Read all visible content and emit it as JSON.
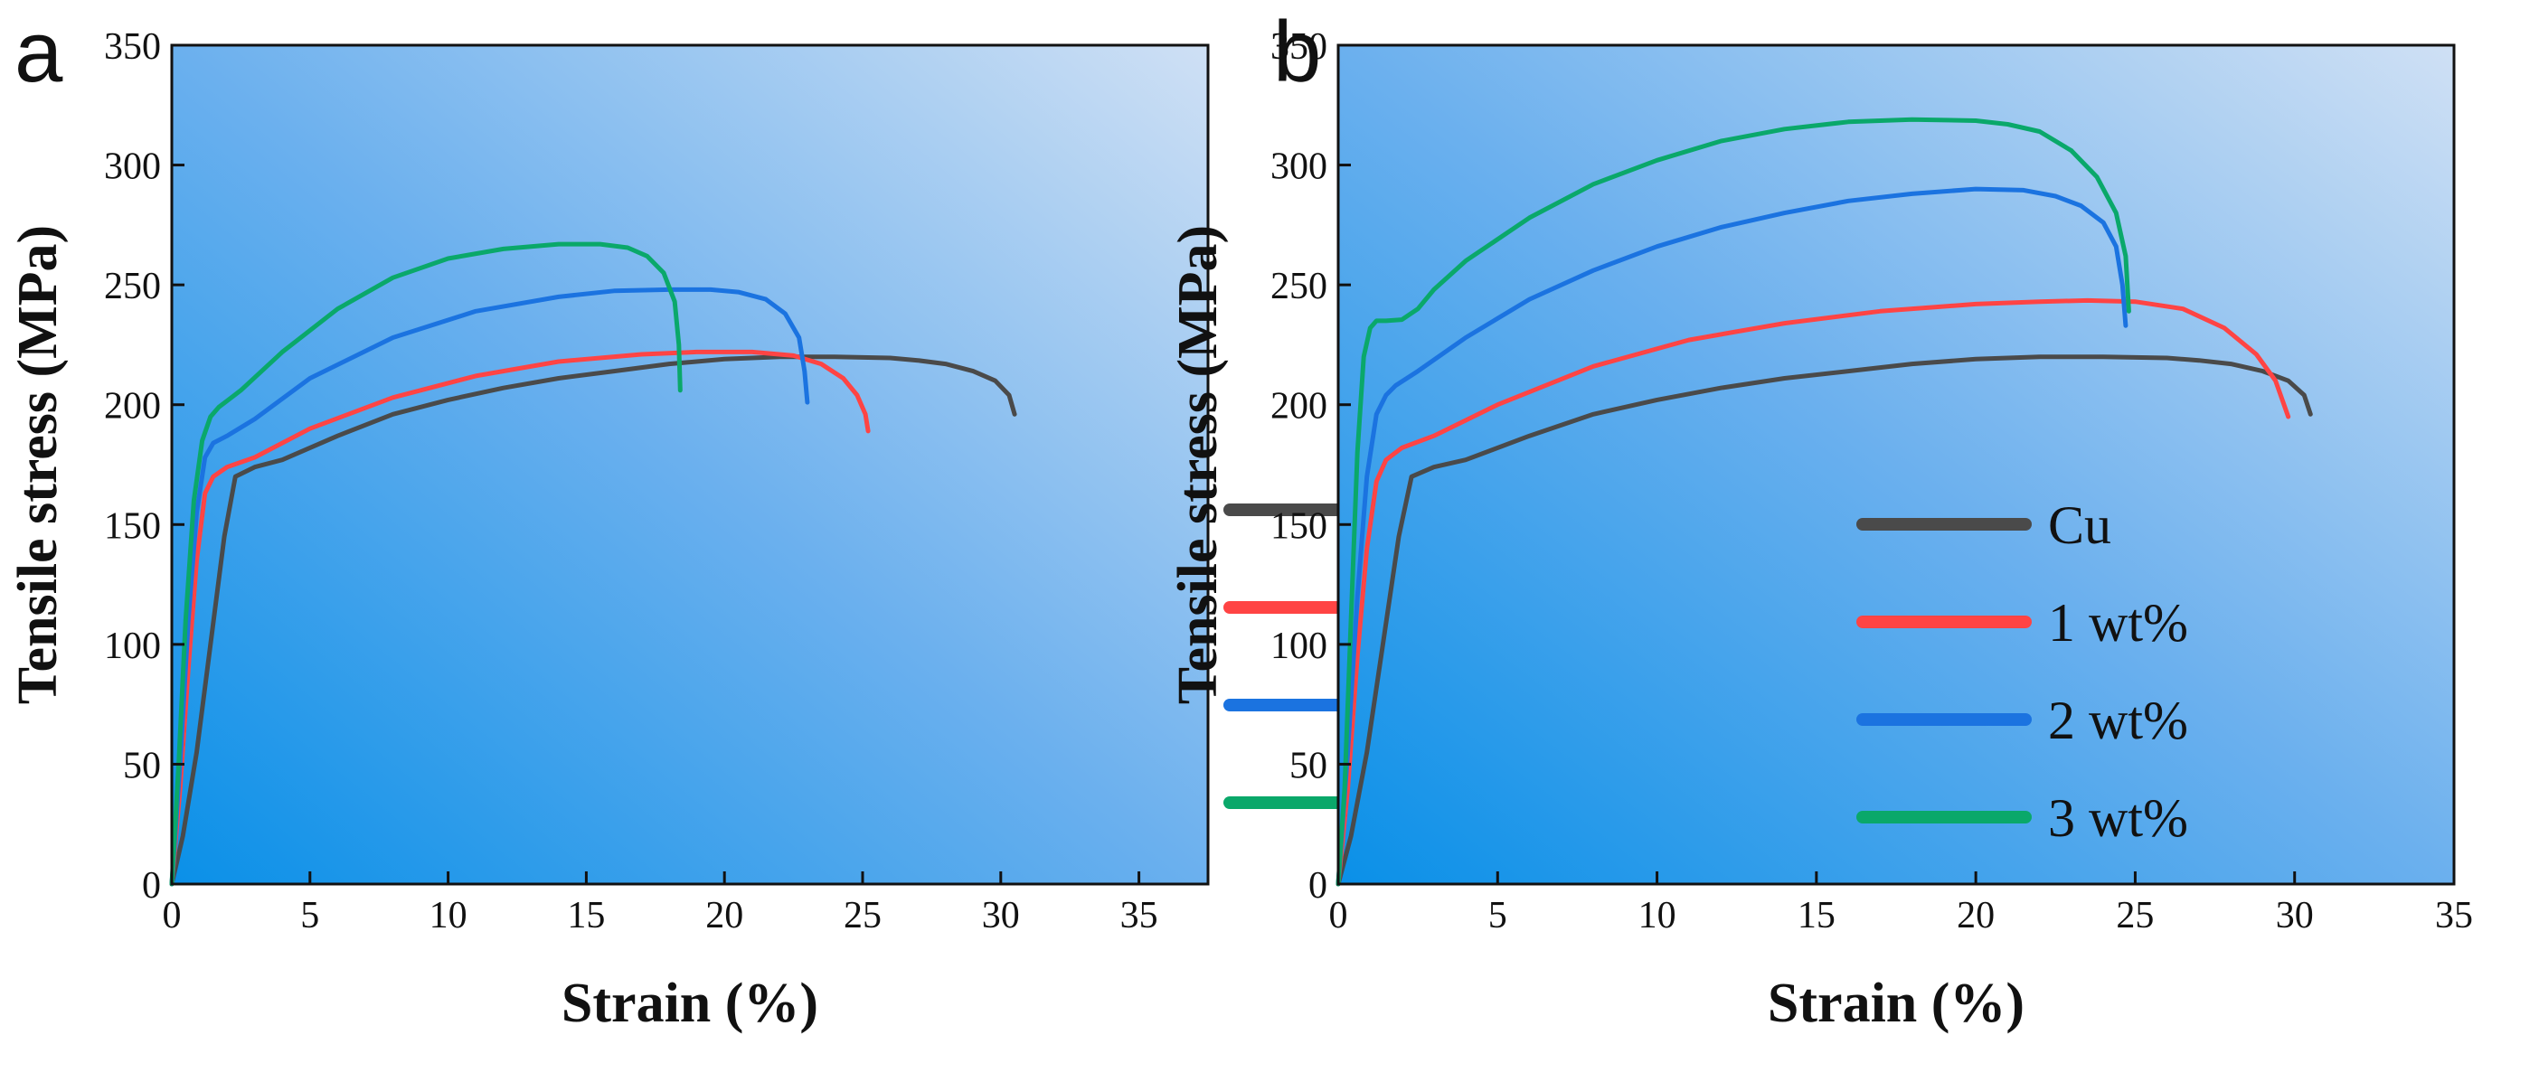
{
  "chart_data": [
    {
      "type": "line",
      "panel": "a",
      "xlabel": "Strain (%)",
      "ylabel": "Tensile stress (MPa)",
      "xlim": [
        0,
        37.5
      ],
      "ylim": [
        0,
        350
      ],
      "xticks": [
        0,
        5,
        10,
        15,
        20,
        25,
        30,
        35
      ],
      "yticks": [
        0,
        50,
        100,
        150,
        200,
        250,
        300,
        350
      ],
      "legend_position": "lower-right",
      "series": [
        {
          "name": "Cu",
          "color": "#4a4a4a",
          "x": [
            0,
            0.4,
            0.9,
            1.4,
            1.9,
            2.3,
            3,
            4,
            6,
            8,
            10,
            12,
            14,
            16,
            18,
            20,
            22,
            24,
            26,
            27,
            28,
            29,
            29.8,
            30.3,
            30.5
          ],
          "y": [
            0,
            20,
            55,
            100,
            145,
            170,
            174,
            177,
            187,
            196,
            202,
            207,
            211,
            214,
            217,
            219,
            220,
            220,
            219.5,
            218.5,
            217,
            214,
            210,
            204,
            196
          ]
        },
        {
          "name": "1 wt%",
          "color": "#ff4444",
          "x": [
            0,
            0.3,
            0.6,
            0.9,
            1.2,
            1.5,
            2,
            3,
            5,
            8,
            11,
            14,
            17,
            19,
            21,
            22.5,
            23.5,
            24.3,
            24.8,
            25.1,
            25.2
          ],
          "y": [
            0,
            40,
            90,
            135,
            163,
            170,
            174,
            178,
            190,
            203,
            212,
            218,
            221,
            222,
            222,
            220.5,
            217,
            211,
            204,
            196,
            189
          ]
        },
        {
          "name": "2 wt%",
          "color": "#1b73e0",
          "x": [
            0,
            0.3,
            0.6,
            0.9,
            1.2,
            1.5,
            2,
            3,
            5,
            8,
            11,
            14,
            16,
            18,
            19.5,
            20.5,
            21.5,
            22.2,
            22.7,
            22.9,
            23.0
          ],
          "y": [
            0,
            50,
            110,
            155,
            178,
            184,
            187,
            194,
            211,
            228,
            239,
            245,
            247.5,
            248,
            248,
            247,
            244,
            238,
            228,
            214,
            201
          ]
        },
        {
          "name": "3 wt%",
          "color": "#0aa86a",
          "x": [
            0,
            0.25,
            0.5,
            0.8,
            1.1,
            1.4,
            1.7,
            2.5,
            4,
            6,
            8,
            10,
            12,
            14,
            15.5,
            16.5,
            17.2,
            17.8,
            18.2,
            18.35,
            18.4
          ],
          "y": [
            0,
            50,
            110,
            160,
            185,
            195,
            199,
            206,
            222,
            240,
            253,
            261,
            265,
            267,
            267,
            265.5,
            262,
            255,
            243,
            225,
            206
          ]
        }
      ]
    },
    {
      "type": "line",
      "panel": "b",
      "xlabel": "Strain (%)",
      "ylabel": "Tensile stress (MPa)",
      "xlim": [
        0,
        35
      ],
      "ylim": [
        0,
        350
      ],
      "xticks": [
        0,
        5,
        10,
        15,
        20,
        25,
        30,
        35
      ],
      "yticks": [
        0,
        50,
        100,
        150,
        200,
        250,
        300,
        350
      ],
      "legend_position": "lower-right",
      "series": [
        {
          "name": "Cu",
          "color": "#4a4a4a",
          "x": [
            0,
            0.4,
            0.9,
            1.4,
            1.9,
            2.3,
            3,
            4,
            6,
            8,
            10,
            12,
            14,
            16,
            18,
            20,
            22,
            24,
            26,
            27,
            28,
            29,
            29.8,
            30.3,
            30.5
          ],
          "y": [
            0,
            20,
            55,
            100,
            145,
            170,
            174,
            177,
            187,
            196,
            202,
            207,
            211,
            214,
            217,
            219,
            220,
            220,
            219.5,
            218.5,
            217,
            214,
            210,
            204,
            196
          ]
        },
        {
          "name": "1 wt%",
          "color": "#ff4444",
          "x": [
            0,
            0.3,
            0.6,
            0.9,
            1.2,
            1.5,
            2,
            3,
            5,
            8,
            11,
            14,
            17,
            20,
            22,
            23.5,
            25,
            26.5,
            27.8,
            28.8,
            29.4,
            29.8
          ],
          "y": [
            0,
            40,
            95,
            140,
            168,
            177,
            182,
            187,
            200,
            216,
            227,
            234,
            239,
            242,
            243,
            243.5,
            243,
            240,
            232,
            221,
            210,
            195
          ]
        },
        {
          "name": "2 wt%",
          "color": "#1b73e0",
          "x": [
            0,
            0.3,
            0.6,
            0.9,
            1.2,
            1.5,
            1.8,
            2.5,
            4,
            6,
            8,
            10,
            12,
            14,
            16,
            18,
            20,
            21.5,
            22.5,
            23.3,
            24,
            24.4,
            24.6,
            24.7
          ],
          "y": [
            0,
            55,
            120,
            170,
            196,
            204,
            208,
            214,
            228,
            244,
            256,
            266,
            274,
            280,
            285,
            288,
            290,
            289.5,
            287,
            283,
            276,
            266,
            250,
            233
          ]
        },
        {
          "name": "3 wt%",
          "color": "#0aa86a",
          "x": [
            0,
            0.2,
            0.4,
            0.6,
            0.8,
            1.0,
            1.2,
            1.5,
            2,
            2.5,
            3,
            4,
            6,
            8,
            10,
            12,
            14,
            16,
            18,
            20,
            21,
            22,
            23,
            23.8,
            24.4,
            24.7,
            24.8
          ],
          "y": [
            0,
            40,
            110,
            180,
            220,
            232,
            235,
            235,
            235.5,
            240,
            248,
            260,
            278,
            292,
            302,
            310,
            315,
            318,
            319,
            318.5,
            317,
            314,
            306,
            295,
            280,
            262,
            239
          ]
        }
      ]
    }
  ]
}
